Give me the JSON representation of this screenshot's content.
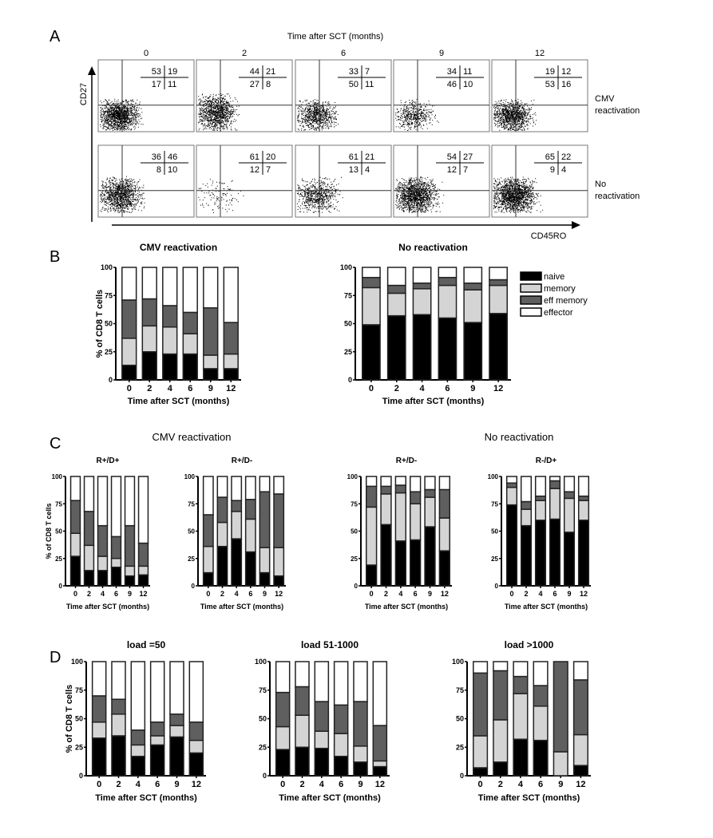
{
  "panel_labels": [
    "A",
    "B",
    "C",
    "D"
  ],
  "colors": {
    "naive": "#000000",
    "memory": "#d4d4d4",
    "eff memory": "#5f5f5f",
    "effector": "#ffffff"
  },
  "flow_data": {
    "title": "Time after SCT (months)",
    "columns": [
      "0",
      "2",
      "6",
      "9",
      "12"
    ],
    "y_axis": "CD27",
    "x_axis": "CD45RO",
    "rows": [
      {
        "label_lines": [
          "CMV",
          "reactivation"
        ],
        "quadrants": [
          [
            "53",
            "19",
            "17",
            "11"
          ],
          [
            "44",
            "21",
            "27",
            "8"
          ],
          [
            "33",
            "7",
            "50",
            "11"
          ],
          [
            "34",
            "11",
            "46",
            "10"
          ],
          [
            "19",
            "12",
            "53",
            "16"
          ]
        ]
      },
      {
        "label_lines": [
          "No",
          "reactivation"
        ],
        "quadrants": [
          [
            "36",
            "46",
            "8",
            "10"
          ],
          [
            "61",
            "20",
            "12",
            "7"
          ],
          [
            "61",
            "21",
            "13",
            "4"
          ],
          [
            "54",
            "27",
            "12",
            "7"
          ],
          [
            "65",
            "22",
            "9",
            "4"
          ]
        ]
      }
    ]
  },
  "chart_data": [
    {
      "id": "B-cmv",
      "type": "bar",
      "stacked": true,
      "title": "CMV reactivation",
      "xlabel": "Time after SCT (months)",
      "ylabel": "% of CD8 T cells",
      "ylim": [
        0,
        100
      ],
      "yticks": [
        "0",
        "25",
        "50",
        "75",
        "100"
      ],
      "categories": [
        "0",
        "2",
        "4",
        "6",
        "9",
        "12"
      ],
      "series": [
        {
          "name": "naive",
          "values": [
            13,
            25,
            23,
            23,
            10,
            10
          ]
        },
        {
          "name": "memory",
          "values": [
            24,
            23,
            24,
            18,
            12,
            13
          ]
        },
        {
          "name": "eff memory",
          "values": [
            34,
            24,
            19,
            19,
            42,
            28
          ]
        },
        {
          "name": "effector",
          "values": [
            29,
            28,
            34,
            40,
            36,
            49
          ]
        }
      ]
    },
    {
      "id": "B-no",
      "type": "bar",
      "stacked": true,
      "title": "No reactivation",
      "xlabel": "Time after SCT (months)",
      "ylim": [
        0,
        100
      ],
      "yticks": [
        "0",
        "25",
        "50",
        "75",
        "100"
      ],
      "categories": [
        "0",
        "2",
        "4",
        "6",
        "9",
        "12"
      ],
      "series": [
        {
          "name": "naive",
          "values": [
            49,
            57,
            58,
            55,
            51,
            59
          ]
        },
        {
          "name": "memory",
          "values": [
            33,
            20,
            23,
            29,
            29,
            25
          ]
        },
        {
          "name": "eff memory",
          "values": [
            9,
            7,
            5,
            7,
            6,
            5
          ]
        },
        {
          "name": "effector",
          "values": [
            9,
            16,
            14,
            9,
            14,
            11
          ]
        }
      ],
      "legend": {
        "placement": "right",
        "entries": [
          "naive",
          "memory",
          "eff memory",
          "effector"
        ]
      }
    },
    {
      "id": "C-cmv-rpdp",
      "type": "bar",
      "stacked": true,
      "group": "CMV reactivation",
      "title": "R+/D+",
      "xlabel": "Time after SCT (months)",
      "ylabel": "% of CD8 T cells",
      "ylim": [
        0,
        100
      ],
      "yticks": [
        "0",
        "25",
        "50",
        "75",
        "100"
      ],
      "categories": [
        "0",
        "2",
        "4",
        "6",
        "9",
        "12"
      ],
      "series": [
        {
          "name": "naive",
          "values": [
            27,
            14,
            14,
            17,
            9,
            10
          ]
        },
        {
          "name": "memory",
          "values": [
            21,
            23,
            13,
            8,
            9,
            8
          ]
        },
        {
          "name": "eff memory",
          "values": [
            30,
            31,
            28,
            20,
            37,
            21
          ]
        },
        {
          "name": "effector",
          "values": [
            22,
            32,
            45,
            55,
            45,
            61
          ]
        }
      ]
    },
    {
      "id": "C-cmv-rpdm",
      "type": "bar",
      "stacked": true,
      "title": "R+/D-",
      "xlabel": "Time after SCT (months)",
      "ylim": [
        0,
        100
      ],
      "yticks": [
        "0",
        "25",
        "50",
        "75",
        "100"
      ],
      "categories": [
        "0",
        "2",
        "4",
        "6",
        "9",
        "12"
      ],
      "series": [
        {
          "name": "naive",
          "values": [
            12,
            36,
            43,
            31,
            12,
            9
          ]
        },
        {
          "name": "memory",
          "values": [
            24,
            22,
            25,
            30,
            23,
            26
          ]
        },
        {
          "name": "eff memory",
          "values": [
            29,
            23,
            10,
            18,
            51,
            49
          ]
        },
        {
          "name": "effector",
          "values": [
            35,
            19,
            22,
            21,
            14,
            16
          ]
        }
      ]
    },
    {
      "id": "C-no-rpdm",
      "type": "bar",
      "stacked": true,
      "group": "No reactivation",
      "title": "R+/D-",
      "xlabel": "Time after SCT (months)",
      "ylim": [
        0,
        100
      ],
      "yticks": [
        "0",
        "25",
        "50",
        "75",
        "100"
      ],
      "categories": [
        "0",
        "2",
        "4",
        "6",
        "9",
        "12"
      ],
      "series": [
        {
          "name": "naive",
          "values": [
            19,
            56,
            41,
            42,
            54,
            32
          ]
        },
        {
          "name": "memory",
          "values": [
            53,
            28,
            44,
            33,
            27,
            30
          ]
        },
        {
          "name": "eff memory",
          "values": [
            19,
            7,
            7,
            11,
            7,
            26
          ]
        },
        {
          "name": "effector",
          "values": [
            9,
            9,
            8,
            14,
            12,
            12
          ]
        }
      ]
    },
    {
      "id": "C-no-rmdp",
      "type": "bar",
      "stacked": true,
      "title": "R-/D+",
      "xlabel": "Time after SCT (months)",
      "ylim": [
        0,
        100
      ],
      "yticks": [
        "0",
        "25",
        "50",
        "75",
        "100"
      ],
      "categories": [
        "0",
        "2",
        "4",
        "6",
        "9",
        "12"
      ],
      "series": [
        {
          "name": "naive",
          "values": [
            74,
            55,
            60,
            61,
            49,
            60
          ]
        },
        {
          "name": "memory",
          "values": [
            16,
            15,
            18,
            28,
            31,
            18
          ]
        },
        {
          "name": "eff memory",
          "values": [
            4,
            7,
            4,
            7,
            6,
            4
          ]
        },
        {
          "name": "effector",
          "values": [
            6,
            23,
            18,
            4,
            14,
            18
          ]
        }
      ]
    },
    {
      "id": "D-50",
      "type": "bar",
      "stacked": true,
      "title": "load =50",
      "xlabel": "Time after SCT (months)",
      "ylabel": "% of CD8 T cells",
      "ylim": [
        0,
        100
      ],
      "yticks": [
        "0",
        "25",
        "50",
        "75",
        "100"
      ],
      "categories": [
        "0",
        "2",
        "4",
        "6",
        "9",
        "12"
      ],
      "series": [
        {
          "name": "naive",
          "values": [
            33,
            35,
            17,
            27,
            34,
            20
          ]
        },
        {
          "name": "memory",
          "values": [
            14,
            19,
            10,
            8,
            10,
            11
          ]
        },
        {
          "name": "eff memory",
          "values": [
            23,
            13,
            13,
            12,
            10,
            16
          ]
        },
        {
          "name": "effector",
          "values": [
            30,
            33,
            60,
            53,
            46,
            53
          ]
        }
      ]
    },
    {
      "id": "D-51-1000",
      "type": "bar",
      "stacked": true,
      "title": "load 51-1000",
      "xlabel": "Time after SCT (months)",
      "ylim": [
        0,
        100
      ],
      "yticks": [
        "0",
        "25",
        "50",
        "75",
        "100"
      ],
      "categories": [
        "0",
        "2",
        "4",
        "6",
        "9",
        "12"
      ],
      "series": [
        {
          "name": "naive",
          "values": [
            23,
            25,
            24,
            17,
            12,
            8
          ]
        },
        {
          "name": "memory",
          "values": [
            20,
            28,
            15,
            20,
            14,
            5
          ]
        },
        {
          "name": "eff memory",
          "values": [
            30,
            25,
            26,
            25,
            39,
            31
          ]
        },
        {
          "name": "effector",
          "values": [
            27,
            22,
            35,
            38,
            35,
            56
          ]
        }
      ]
    },
    {
      "id": "D-1000",
      "type": "bar",
      "stacked": true,
      "title": "load >1000",
      "xlabel": "Time after SCT (months)",
      "ylim": [
        0,
        100
      ],
      "yticks": [
        "0",
        "25",
        "50",
        "75",
        "100"
      ],
      "categories": [
        "0",
        "2",
        "4",
        "6",
        "9",
        "12"
      ],
      "series": [
        {
          "name": "naive",
          "values": [
            7,
            12,
            32,
            31,
            0,
            9
          ]
        },
        {
          "name": "memory",
          "values": [
            28,
            37,
            40,
            30,
            21,
            27
          ]
        },
        {
          "name": "eff memory",
          "values": [
            55,
            43,
            15,
            18,
            79,
            48
          ]
        },
        {
          "name": "effector",
          "values": [
            10,
            8,
            13,
            21,
            0,
            16
          ]
        }
      ]
    }
  ]
}
